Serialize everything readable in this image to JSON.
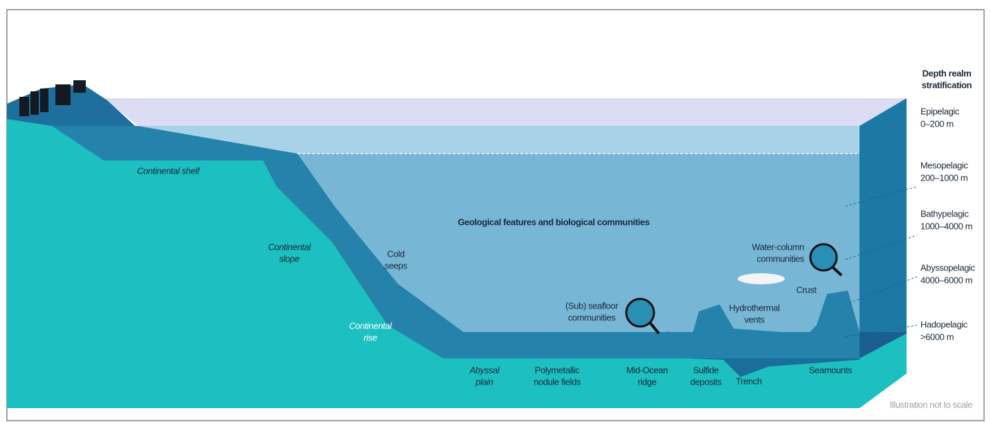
{
  "legend": {
    "title": [
      "Depth realm",
      "stratification"
    ],
    "realms": [
      {
        "name": "Epipelagic",
        "depth": "0–200 m"
      },
      {
        "name": "Mesopelagic",
        "depth": "200–1000 m"
      },
      {
        "name": "Bathypelagic",
        "depth": "1000–4000 m"
      },
      {
        "name": "Abyssopelagic",
        "depth": "4000–6000 m"
      },
      {
        "name": "Hadopelagic",
        "depth": ">6000 m"
      }
    ]
  },
  "main_label": "Geological features and biological communities",
  "features": [
    {
      "lines": [
        "Continental shelf"
      ]
    },
    {
      "lines": [
        "Continental",
        "slope"
      ]
    },
    {
      "lines": [
        "Cold",
        "seeps"
      ]
    },
    {
      "lines": [
        "Continental",
        "rise"
      ]
    },
    {
      "lines": [
        "Water-column",
        "communities"
      ]
    },
    {
      "lines": [
        "Crust"
      ]
    },
    {
      "lines": [
        "(Sub) seafloor",
        "communities"
      ]
    },
    {
      "lines": [
        "Hydrothermal",
        "vents"
      ]
    },
    {
      "lines": [
        "Abyssal",
        "plain"
      ]
    },
    {
      "lines": [
        "Polymetallic",
        "nodule fields"
      ]
    },
    {
      "lines": [
        "Mid-Ocean",
        "ridge"
      ]
    },
    {
      "lines": [
        "Sulfide",
        "deposits"
      ]
    },
    {
      "lines": [
        "Trench"
      ]
    },
    {
      "lines": [
        "Seamounts"
      ]
    }
  ],
  "note": "Illustration not to scale"
}
